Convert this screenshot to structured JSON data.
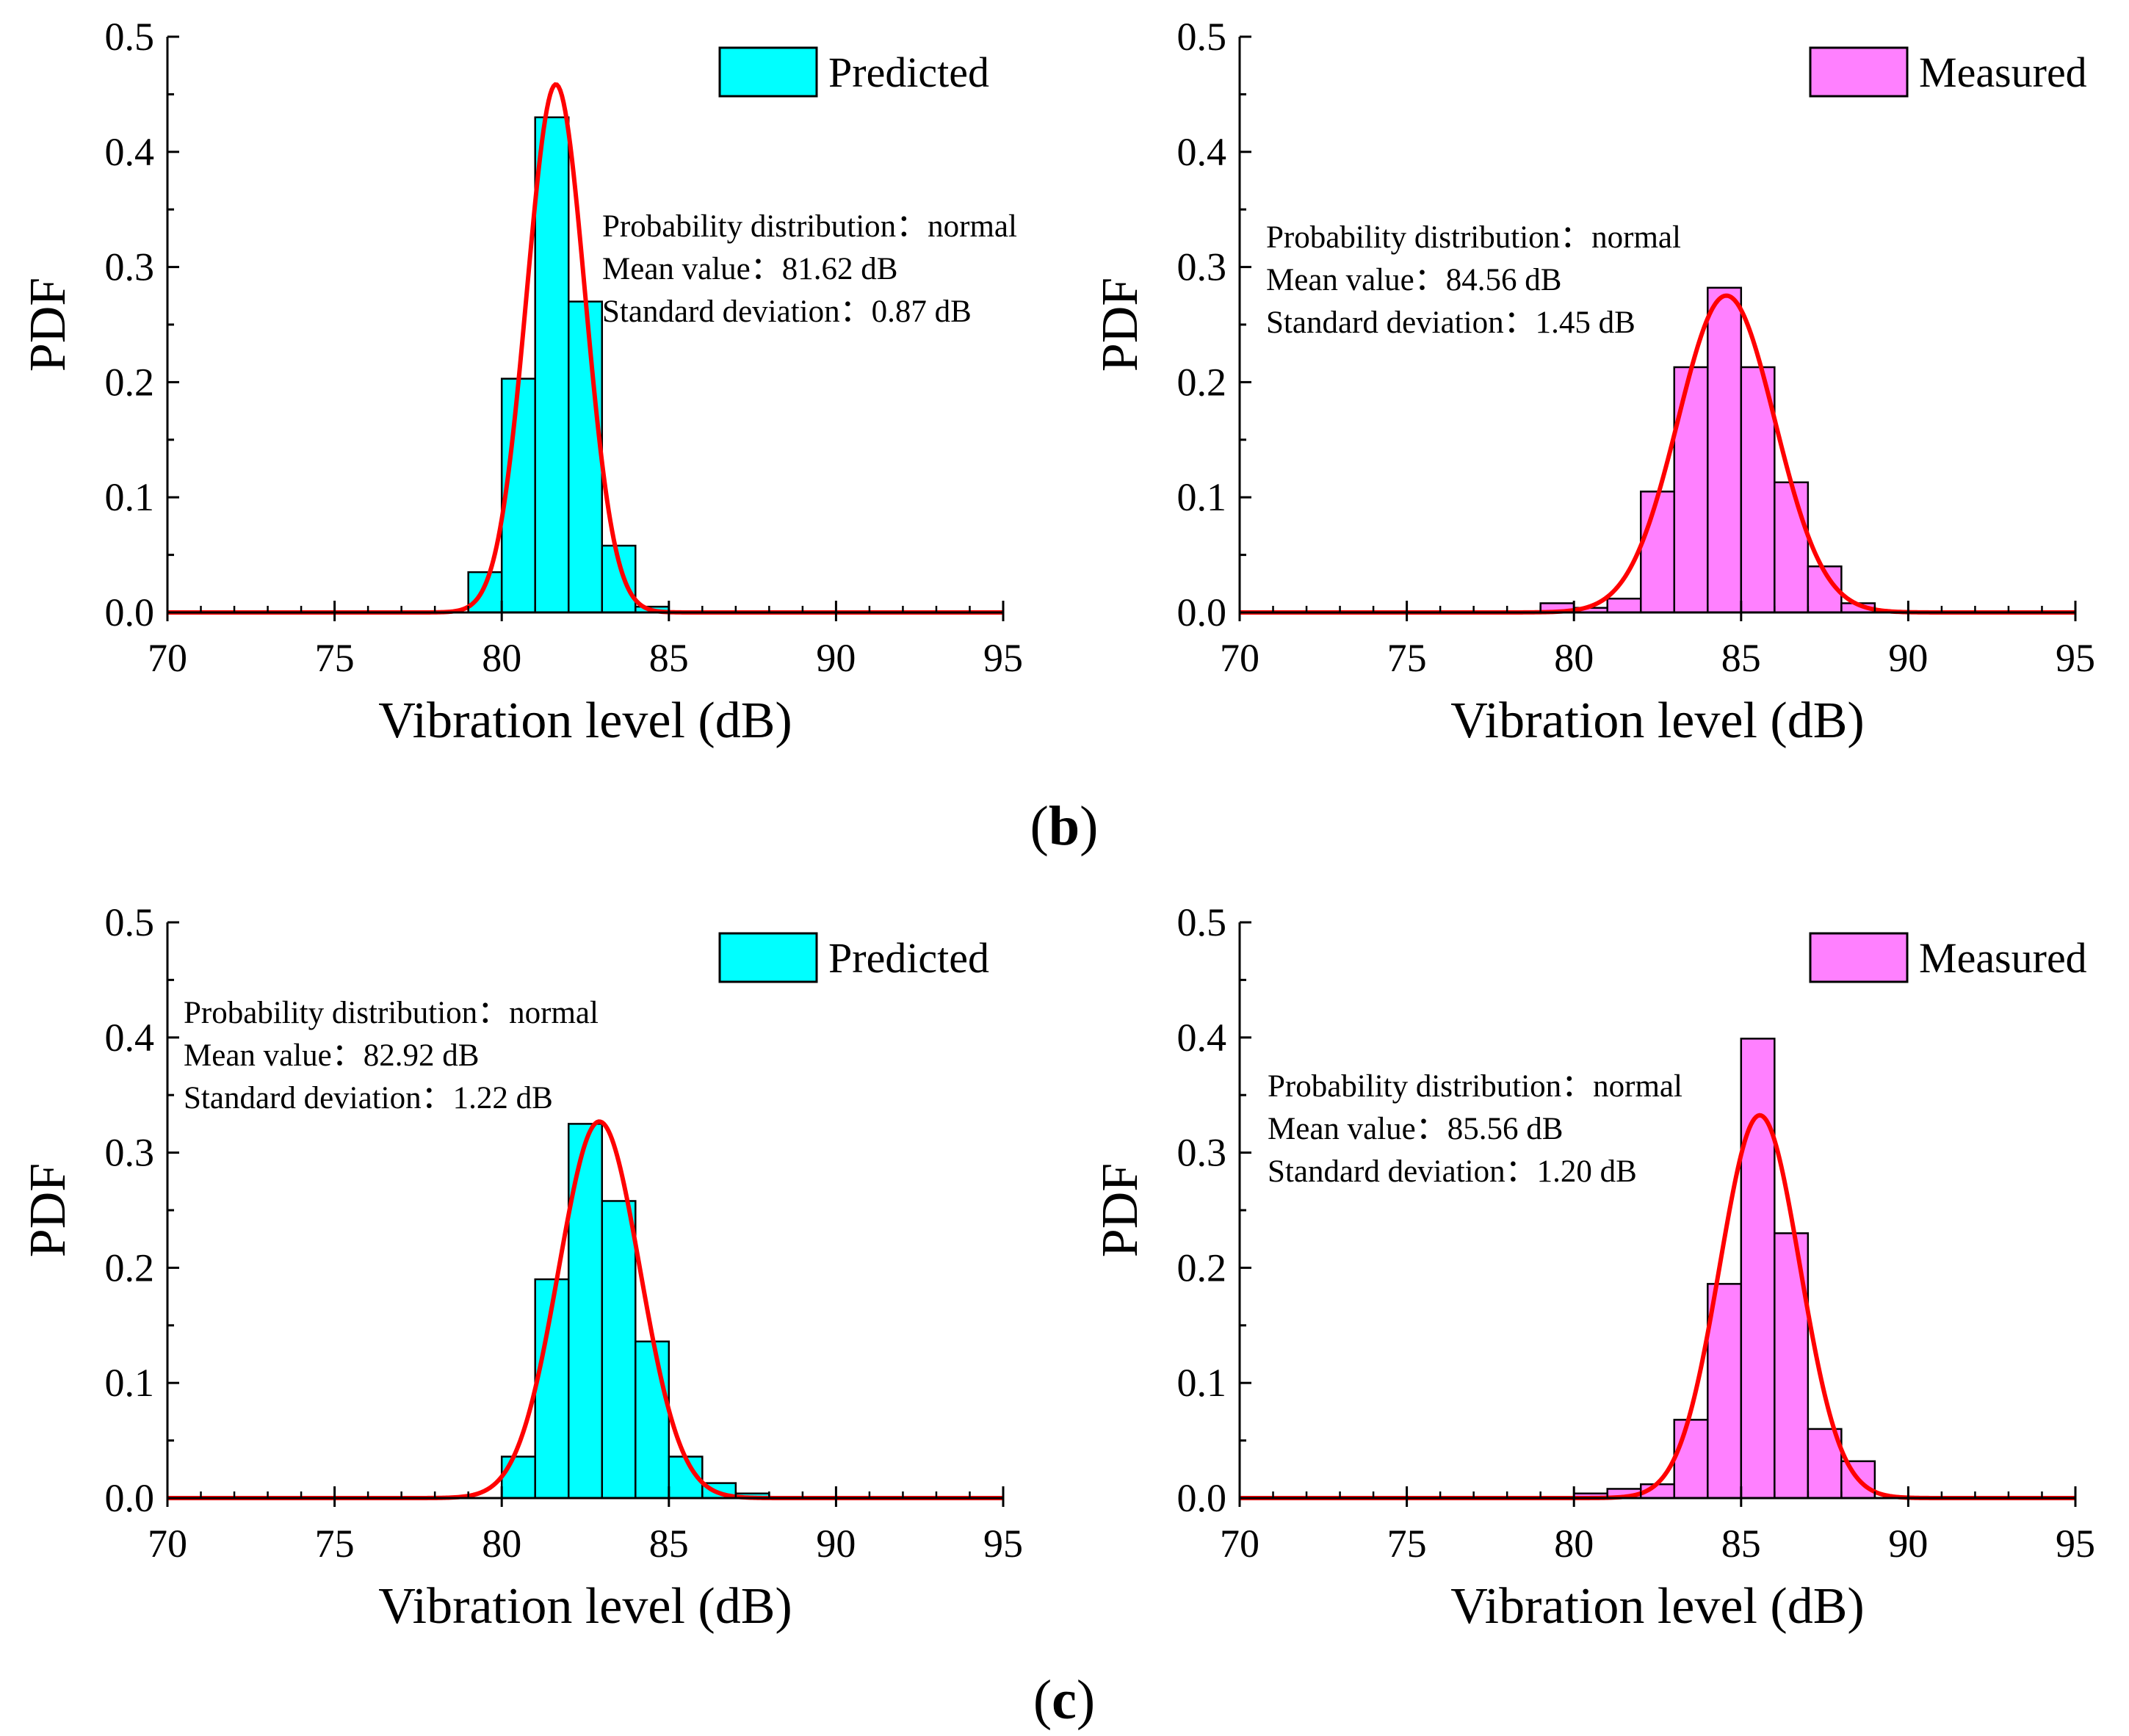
{
  "panel_labels": {
    "b": "(b)",
    "c": "(c)"
  },
  "colors": {
    "predicted": "#00FFFF",
    "measured": "#FF80FF",
    "curve": "#FF0000",
    "axis": "#000000"
  },
  "chart_data": [
    {
      "id": "b-predicted",
      "type": "bar",
      "title": "",
      "xlabel": "Vibration level (dB)",
      "ylabel": "PDF",
      "xlim": [
        70,
        95
      ],
      "ylim": [
        0,
        0.5
      ],
      "xticks": [
        "70",
        "75",
        "80",
        "85",
        "90",
        "95"
      ],
      "yticks": [
        "0.0",
        "0.1",
        "0.2",
        "0.3",
        "0.4",
        "0.5"
      ],
      "legend": "Predicted",
      "legend_position": "top-right",
      "bin_width": 1,
      "bins": [
        {
          "x0": 79,
          "value": 0.035
        },
        {
          "x0": 80,
          "value": 0.203
        },
        {
          "x0": 81,
          "value": 0.43
        },
        {
          "x0": 82,
          "value": 0.27
        },
        {
          "x0": 83,
          "value": 0.058
        },
        {
          "x0": 84,
          "value": 0.005
        }
      ],
      "fit": {
        "distribution": "normal",
        "mean": 81.62,
        "sd": 0.87
      },
      "annotation": [
        "Probability distribution：normal",
        "Mean value：81.62 dB",
        "Standard deviation：0.87 dB"
      ]
    },
    {
      "id": "b-measured",
      "type": "bar",
      "title": "",
      "xlabel": "Vibration level (dB)",
      "ylabel": "PDF",
      "xlim": [
        70,
        95
      ],
      "ylim": [
        0,
        0.5
      ],
      "xticks": [
        "70",
        "75",
        "80",
        "85",
        "90",
        "95"
      ],
      "yticks": [
        "0.0",
        "0.1",
        "0.2",
        "0.3",
        "0.4",
        "0.5"
      ],
      "legend": "Measured",
      "legend_position": "top-right",
      "bin_width": 1,
      "bins": [
        {
          "x0": 79,
          "value": 0.008
        },
        {
          "x0": 80,
          "value": 0.004
        },
        {
          "x0": 81,
          "value": 0.012
        },
        {
          "x0": 82,
          "value": 0.105
        },
        {
          "x0": 83,
          "value": 0.213
        },
        {
          "x0": 84,
          "value": 0.282
        },
        {
          "x0": 85,
          "value": 0.213
        },
        {
          "x0": 86,
          "value": 0.113
        },
        {
          "x0": 87,
          "value": 0.04
        },
        {
          "x0": 88,
          "value": 0.008
        }
      ],
      "fit": {
        "distribution": "normal",
        "mean": 84.56,
        "sd": 1.45
      },
      "annotation": [
        "Probability distribution：normal",
        "Mean value：84.56 dB",
        "Standard deviation：1.45 dB"
      ]
    },
    {
      "id": "c-predicted",
      "type": "bar",
      "title": "",
      "xlabel": "Vibration level (dB)",
      "ylabel": "PDF",
      "xlim": [
        70,
        95
      ],
      "ylim": [
        0,
        0.5
      ],
      "xticks": [
        "70",
        "75",
        "80",
        "85",
        "90",
        "95"
      ],
      "yticks": [
        "0.0",
        "0.1",
        "0.2",
        "0.3",
        "0.4",
        "0.5"
      ],
      "legend": "Predicted",
      "legend_position": "top-right",
      "bin_width": 1,
      "bins": [
        {
          "x0": 80,
          "value": 0.036
        },
        {
          "x0": 81,
          "value": 0.19
        },
        {
          "x0": 82,
          "value": 0.325
        },
        {
          "x0": 83,
          "value": 0.258
        },
        {
          "x0": 84,
          "value": 0.136
        },
        {
          "x0": 85,
          "value": 0.036
        },
        {
          "x0": 86,
          "value": 0.013
        },
        {
          "x0": 87,
          "value": 0.004
        }
      ],
      "fit": {
        "distribution": "normal",
        "mean": 82.92,
        "sd": 1.22
      },
      "annotation": [
        "Probability distribution：normal",
        "Mean value：82.92 dB",
        "Standard deviation：1.22 dB"
      ]
    },
    {
      "id": "c-measured",
      "type": "bar",
      "title": "",
      "xlabel": "Vibration level (dB)",
      "ylabel": "PDF",
      "xlim": [
        70,
        95
      ],
      "ylim": [
        0,
        0.5
      ],
      "xticks": [
        "70",
        "75",
        "80",
        "85",
        "90",
        "95"
      ],
      "yticks": [
        "0.0",
        "0.1",
        "0.2",
        "0.3",
        "0.4",
        "0.5"
      ],
      "legend": "Measured",
      "legend_position": "top-right",
      "bin_width": 1,
      "bins": [
        {
          "x0": 80,
          "value": 0.004
        },
        {
          "x0": 81,
          "value": 0.008
        },
        {
          "x0": 82,
          "value": 0.012
        },
        {
          "x0": 83,
          "value": 0.068
        },
        {
          "x0": 84,
          "value": 0.186
        },
        {
          "x0": 85,
          "value": 0.399
        },
        {
          "x0": 86,
          "value": 0.23
        },
        {
          "x0": 87,
          "value": 0.06
        },
        {
          "x0": 88,
          "value": 0.032
        }
      ],
      "fit": {
        "distribution": "normal",
        "mean": 85.56,
        "sd": 1.2
      },
      "annotation": [
        "Probability distribution：normal",
        "Mean value：85.56 dB",
        "Standard deviation：1.20 dB"
      ]
    }
  ]
}
